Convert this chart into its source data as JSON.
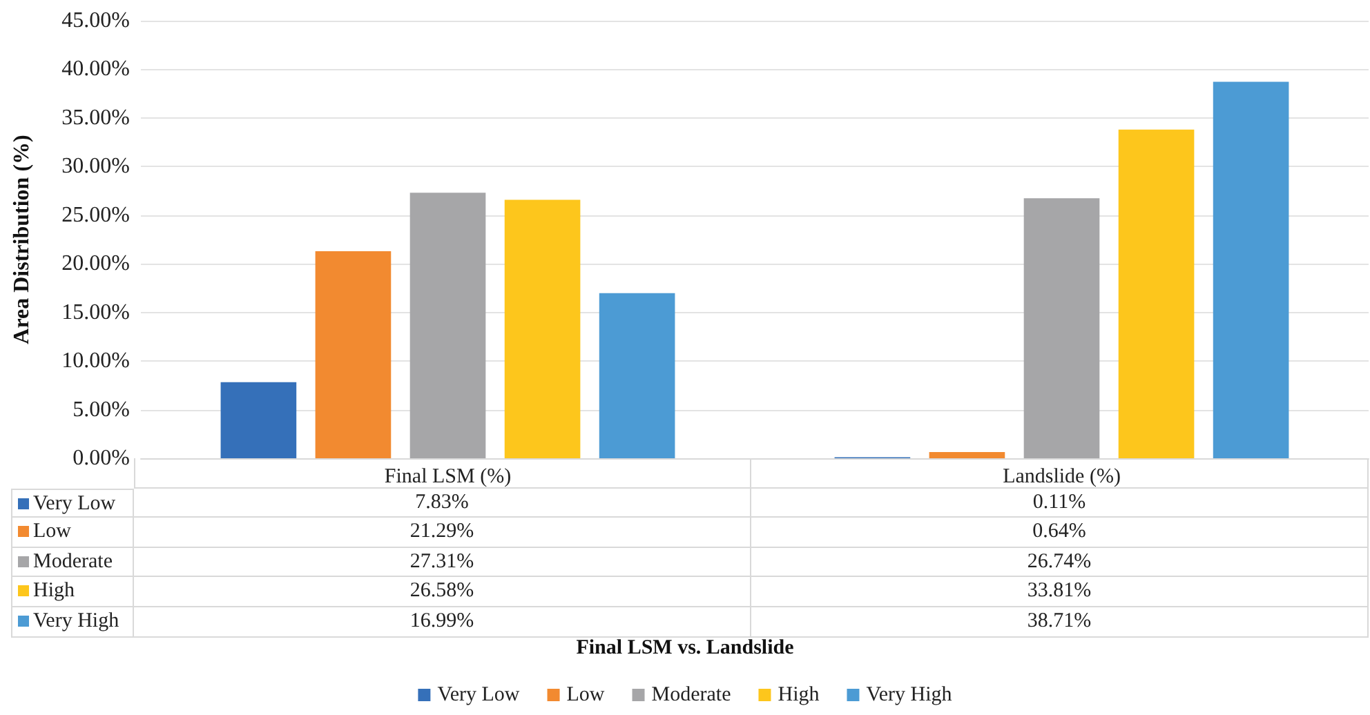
{
  "chart_data": {
    "type": "bar",
    "annotations": [
      "Final LSM vs. Landslide"
    ],
    "ylabel": "Area Distribution (%)",
    "categories": [
      "Final LSM (%)",
      "Landslide (%)"
    ],
    "series": [
      {
        "name": "Very Low",
        "color": "#3570b9",
        "values": [
          7.83,
          0.11
        ],
        "value_labels": [
          "7.83%",
          "0.11%"
        ]
      },
      {
        "name": "Low",
        "color": "#f28a30",
        "values": [
          21.29,
          0.64
        ],
        "value_labels": [
          "21.29%",
          "0.64%"
        ]
      },
      {
        "name": "Moderate",
        "color": "#a6a6a8",
        "values": [
          27.31,
          26.74
        ],
        "value_labels": [
          "27.31%",
          "26.74%"
        ]
      },
      {
        "name": "High",
        "color": "#fdc61c",
        "values": [
          26.58,
          33.81
        ],
        "value_labels": [
          "26.58%",
          "33.81%"
        ]
      },
      {
        "name": "Very High",
        "color": "#4c9bd4",
        "values": [
          16.99,
          38.71
        ],
        "value_labels": [
          "16.99%",
          "38.71%"
        ]
      }
    ],
    "ylim": [
      0,
      45
    ],
    "yticks": [
      {
        "value": 0,
        "label": "0.00%"
      },
      {
        "value": 5,
        "label": "5.00%"
      },
      {
        "value": 10,
        "label": "10.00%"
      },
      {
        "value": 15,
        "label": "15.00%"
      },
      {
        "value": 20,
        "label": "20.00%"
      },
      {
        "value": 25,
        "label": "25.00%"
      },
      {
        "value": 30,
        "label": "30.00%"
      },
      {
        "value": 35,
        "label": "35.00%"
      },
      {
        "value": 40,
        "label": "40.00%"
      },
      {
        "value": 45,
        "label": "45.00%"
      }
    ],
    "grid": "y",
    "legend": "bottom"
  }
}
